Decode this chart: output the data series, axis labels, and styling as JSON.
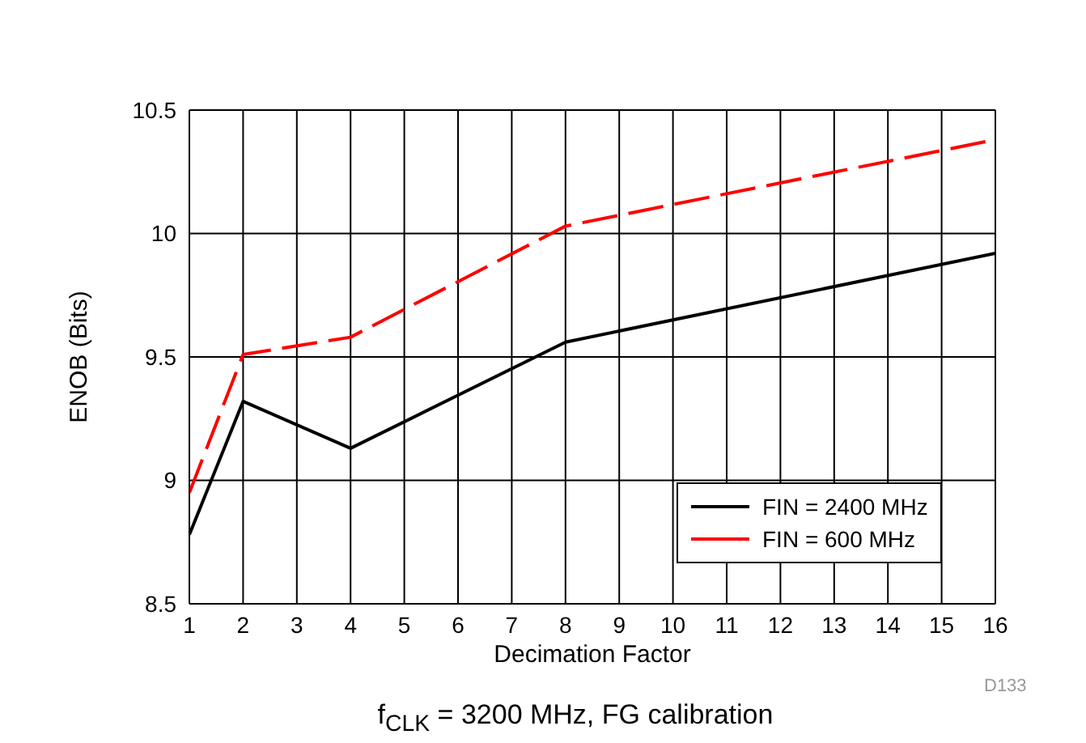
{
  "chart_data": {
    "type": "line",
    "xlabel": "Decimation Factor",
    "ylabel": "ENOB (Bits)",
    "x": [
      1,
      2,
      4,
      8,
      16
    ],
    "series": [
      {
        "name": "FIN = 2400 MHz",
        "color": "#000000",
        "values": [
          8.78,
          9.32,
          9.13,
          9.56,
          9.92
        ],
        "line_style": "solid"
      },
      {
        "name": "FIN = 600 MHz",
        "color": "#ff0000",
        "values": [
          8.95,
          9.51,
          9.58,
          10.03,
          10.38
        ],
        "line_style": "dashed"
      }
    ],
    "xlim": [
      1,
      16
    ],
    "xticks": [
      1,
      2,
      3,
      4,
      5,
      6,
      7,
      8,
      9,
      10,
      11,
      12,
      13,
      14,
      15,
      16
    ],
    "ylim": [
      8.5,
      10.5
    ],
    "yticks": [
      8.5,
      9,
      9.5,
      10,
      10.5
    ],
    "grid": true,
    "legend": "bottom right",
    "marker": "none",
    "annotations": [
      "D133",
      "f$_{CLK}$ = 3200 MHz, FG calibration"
    ]
  }
}
